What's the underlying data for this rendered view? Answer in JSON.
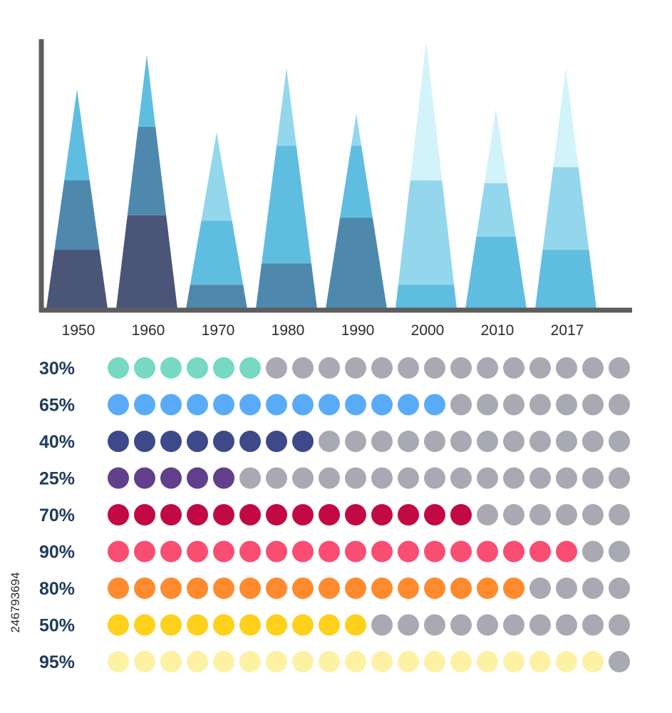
{
  "chart_data": [
    {
      "type": "bar",
      "style": "stacked triangular bars",
      "categories": [
        "1950",
        "1960",
        "1970",
        "1980",
        "1990",
        "2000",
        "2010",
        "2017"
      ],
      "ylim": [
        0,
        100
      ],
      "grid": false,
      "values": [
        82,
        95,
        66,
        90,
        73,
        100,
        75,
        90
      ],
      "segments": [
        [
          {
            "value": 22,
            "color": "#4a5578"
          },
          {
            "value": 26,
            "color": "#4f88ad"
          },
          {
            "value": 34,
            "color": "#5fbedf"
          }
        ],
        [
          {
            "value": 35,
            "color": "#4a5578"
          },
          {
            "value": 33,
            "color": "#4f88ad"
          },
          {
            "value": 27,
            "color": "#5fbedf"
          }
        ],
        [
          {
            "value": 9,
            "color": "#4f88ad"
          },
          {
            "value": 24,
            "color": "#5fbedf"
          },
          {
            "value": 33,
            "color": "#94d7ec"
          }
        ],
        [
          {
            "value": 17,
            "color": "#4f88ad"
          },
          {
            "value": 44,
            "color": "#5fbedf"
          },
          {
            "value": 29,
            "color": "#94d7ec"
          }
        ],
        [
          {
            "value": 34,
            "color": "#4f88ad"
          },
          {
            "value": 27,
            "color": "#5fbedf"
          },
          {
            "value": 12,
            "color": "#94d7ec"
          }
        ],
        [
          {
            "value": 9,
            "color": "#5fbedf"
          },
          {
            "value": 39,
            "color": "#94d7ec"
          },
          {
            "value": 52,
            "color": "#d3f3fb"
          }
        ],
        [
          {
            "value": 27,
            "color": "#5fbedf"
          },
          {
            "value": 20,
            "color": "#94d7ec"
          },
          {
            "value": 28,
            "color": "#d3f3fb"
          }
        ],
        [
          {
            "value": 22,
            "color": "#5fbedf"
          },
          {
            "value": 31,
            "color": "#94d7ec"
          },
          {
            "value": 37,
            "color": "#d3f3fb"
          }
        ]
      ]
    },
    {
      "type": "dot_rows",
      "dots_per_row": 20,
      "inactive_color": "#a8a9b2",
      "rows": [
        {
          "label": "30%",
          "filled": 6,
          "color": "#77d9c2"
        },
        {
          "label": "65%",
          "filled": 13,
          "color": "#5aabf7"
        },
        {
          "label": "40%",
          "filled": 8,
          "color": "#3d4989"
        },
        {
          "label": "25%",
          "filled": 5,
          "color": "#613f8a"
        },
        {
          "label": "70%",
          "filled": 14,
          "color": "#c20943"
        },
        {
          "label": "90%",
          "filled": 18,
          "color": "#f94d71"
        },
        {
          "label": "80%",
          "filled": 16,
          "color": "#ff8b2e"
        },
        {
          "label": "50%",
          "filled": 10,
          "color": "#ffd01c"
        },
        {
          "label": "95%",
          "filled": 19,
          "color": "#fdf1a4"
        }
      ]
    }
  ],
  "colors": {
    "axis": "#5d5d5d"
  },
  "side_text": "246793694"
}
